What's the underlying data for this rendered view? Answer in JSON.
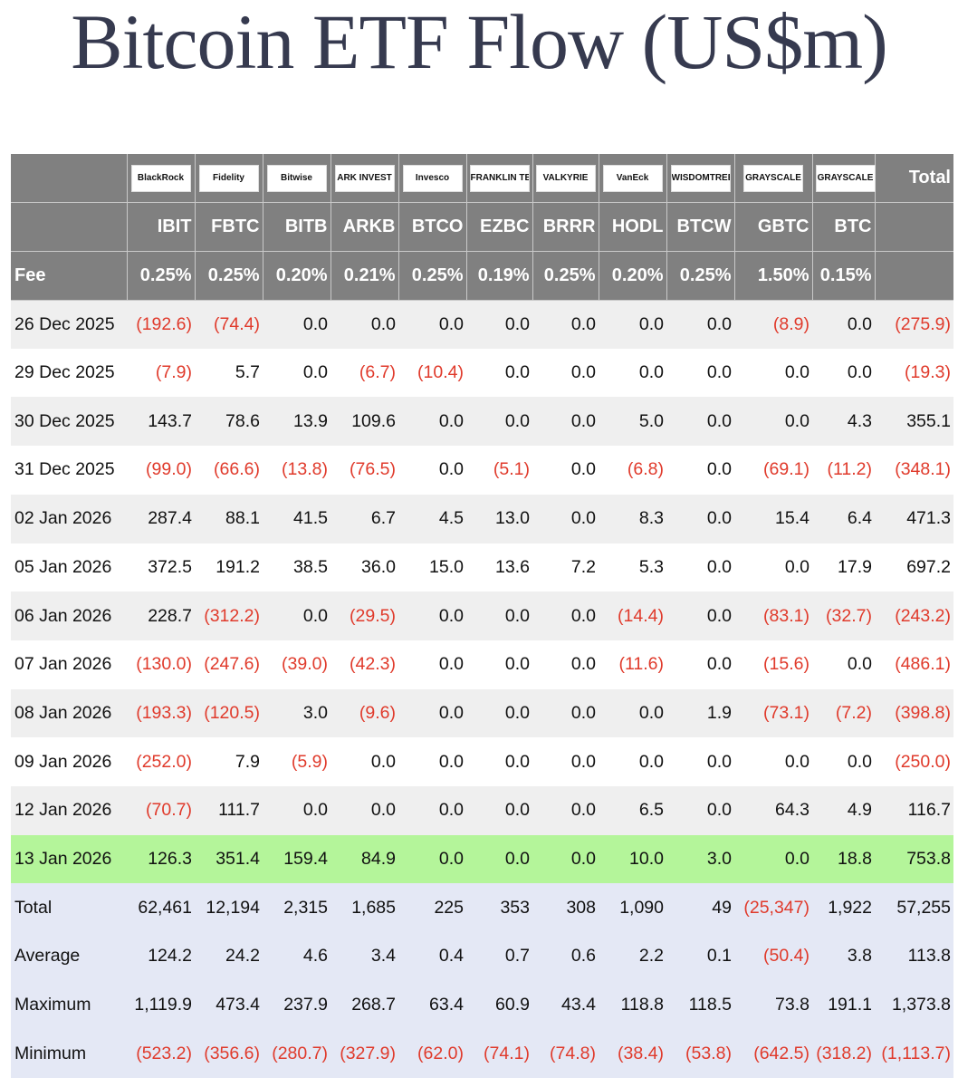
{
  "title": "Bitcoin ETF Flow (US$m)",
  "colors": {
    "header_bg": "#808080",
    "negative": "#e03a2b",
    "highlight": "#b4f59a",
    "stats_bg": "#e4e8f5",
    "title": "#363a4f"
  },
  "issuers": [
    "BlackRock",
    "Fidelity",
    "Bitwise",
    "ARK INVEST",
    "Invesco",
    "FRANKLIN TEMPLETON",
    "VALKYRIE",
    "VanEck",
    "WISDOMTREE",
    "GRAYSCALE",
    "GRAYSCALE"
  ],
  "total_header": "Total",
  "tickers": [
    "IBIT",
    "FBTC",
    "BITB",
    "ARKB",
    "BTCO",
    "EZBC",
    "BRRR",
    "HODL",
    "BTCW",
    "GBTC",
    "BTC"
  ],
  "fee_label": "Fee",
  "fees": [
    "0.25%",
    "0.25%",
    "0.20%",
    "0.21%",
    "0.25%",
    "0.19%",
    "0.25%",
    "0.20%",
    "0.25%",
    "1.50%",
    "0.15%"
  ],
  "chart_data": {
    "type": "table",
    "title": "Bitcoin ETF Flow (US$m)",
    "columns": [
      "IBIT",
      "FBTC",
      "BITB",
      "ARKB",
      "BTCO",
      "EZBC",
      "BRRR",
      "HODL",
      "BTCW",
      "GBTC",
      "BTC",
      "Total"
    ],
    "rows": [
      {
        "label": "26 Dec 2025",
        "values": [
          "(192.6)",
          "(74.4)",
          "0.0",
          "0.0",
          "0.0",
          "0.0",
          "0.0",
          "0.0",
          "0.0",
          "(8.9)",
          "0.0",
          "(275.9)"
        ]
      },
      {
        "label": "29 Dec 2025",
        "values": [
          "(7.9)",
          "5.7",
          "0.0",
          "(6.7)",
          "(10.4)",
          "0.0",
          "0.0",
          "0.0",
          "0.0",
          "0.0",
          "0.0",
          "(19.3)"
        ]
      },
      {
        "label": "30 Dec 2025",
        "values": [
          "143.7",
          "78.6",
          "13.9",
          "109.6",
          "0.0",
          "0.0",
          "0.0",
          "5.0",
          "0.0",
          "0.0",
          "4.3",
          "355.1"
        ]
      },
      {
        "label": "31 Dec 2025",
        "values": [
          "(99.0)",
          "(66.6)",
          "(13.8)",
          "(76.5)",
          "0.0",
          "(5.1)",
          "0.0",
          "(6.8)",
          "0.0",
          "(69.1)",
          "(11.2)",
          "(348.1)"
        ]
      },
      {
        "label": "02 Jan 2026",
        "values": [
          "287.4",
          "88.1",
          "41.5",
          "6.7",
          "4.5",
          "13.0",
          "0.0",
          "8.3",
          "0.0",
          "15.4",
          "6.4",
          "471.3"
        ]
      },
      {
        "label": "05 Jan 2026",
        "values": [
          "372.5",
          "191.2",
          "38.5",
          "36.0",
          "15.0",
          "13.6",
          "7.2",
          "5.3",
          "0.0",
          "0.0",
          "17.9",
          "697.2"
        ]
      },
      {
        "label": "06 Jan 2026",
        "values": [
          "228.7",
          "(312.2)",
          "0.0",
          "(29.5)",
          "0.0",
          "0.0",
          "0.0",
          "(14.4)",
          "0.0",
          "(83.1)",
          "(32.7)",
          "(243.2)"
        ]
      },
      {
        "label": "07 Jan 2026",
        "values": [
          "(130.0)",
          "(247.6)",
          "(39.0)",
          "(42.3)",
          "0.0",
          "0.0",
          "0.0",
          "(11.6)",
          "0.0",
          "(15.6)",
          "0.0",
          "(486.1)"
        ]
      },
      {
        "label": "08 Jan 2026",
        "values": [
          "(193.3)",
          "(120.5)",
          "3.0",
          "(9.6)",
          "0.0",
          "0.0",
          "0.0",
          "0.0",
          "1.9",
          "(73.1)",
          "(7.2)",
          "(398.8)"
        ]
      },
      {
        "label": "09 Jan 2026",
        "values": [
          "(252.0)",
          "7.9",
          "(5.9)",
          "0.0",
          "0.0",
          "0.0",
          "0.0",
          "0.0",
          "0.0",
          "0.0",
          "0.0",
          "(250.0)"
        ]
      },
      {
        "label": "12 Jan 2026",
        "values": [
          "(70.7)",
          "111.7",
          "0.0",
          "0.0",
          "0.0",
          "0.0",
          "0.0",
          "6.5",
          "0.0",
          "64.3",
          "4.9",
          "116.7"
        ]
      },
      {
        "label": "13 Jan 2026",
        "values": [
          "126.3",
          "351.4",
          "159.4",
          "84.9",
          "0.0",
          "0.0",
          "0.0",
          "10.0",
          "3.0",
          "0.0",
          "18.8",
          "753.8"
        ],
        "highlight": true
      }
    ],
    "stats": [
      {
        "label": "Total",
        "values": [
          "62,461",
          "12,194",
          "2,315",
          "1,685",
          "225",
          "353",
          "308",
          "1,090",
          "49",
          "(25,347)",
          "1,922",
          "57,255"
        ]
      },
      {
        "label": "Average",
        "values": [
          "124.2",
          "24.2",
          "4.6",
          "3.4",
          "0.4",
          "0.7",
          "0.6",
          "2.2",
          "0.1",
          "(50.4)",
          "3.8",
          "113.8"
        ]
      },
      {
        "label": "Maximum",
        "values": [
          "1,119.9",
          "473.4",
          "237.9",
          "268.7",
          "63.4",
          "60.9",
          "43.4",
          "118.8",
          "118.5",
          "73.8",
          "191.1",
          "1,373.8"
        ]
      },
      {
        "label": "Minimum",
        "values": [
          "(523.2)",
          "(356.6)",
          "(280.7)",
          "(327.9)",
          "(62.0)",
          "(74.1)",
          "(74.8)",
          "(38.4)",
          "(53.8)",
          "(642.5)",
          "(318.2)",
          "(1,113.7)"
        ]
      }
    ]
  }
}
